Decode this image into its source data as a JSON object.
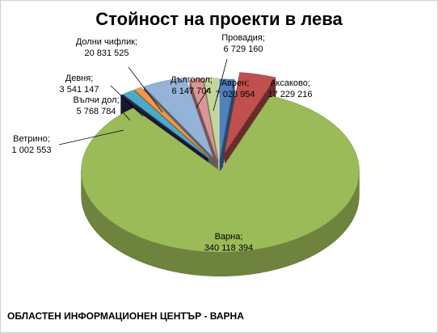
{
  "chart_data": {
    "type": "pie",
    "title": "Стойност на проекти в лева",
    "slices": [
      {
        "name": "Аврен",
        "value_label": "7 028 954",
        "value": 7028954,
        "color": "#4f81bd"
      },
      {
        "name": "Аксаково",
        "value_label": "17 229 216",
        "value": 17229216,
        "color": "#c0504d"
      },
      {
        "name": "Варна",
        "value_label": "340 118 394",
        "value": 340118394,
        "color": "#9bbb59"
      },
      {
        "name": "Ветрино",
        "value_label": "1 002 553",
        "value": 1002553,
        "color": "#2c2a55"
      },
      {
        "name": "Вълчи дол",
        "value_label": "5 768 784",
        "value": 5768784,
        "color": "#4bacc6"
      },
      {
        "name": "Девня",
        "value_label": "3 541 147",
        "value": 3541147,
        "color": "#f79646"
      },
      {
        "name": "Долни чифлик",
        "value_label": "20 831 525",
        "value": 20831525,
        "color": "#95b3d7"
      },
      {
        "name": "Дългопол",
        "value_label": "6 147 704",
        "value": 6147704,
        "color": "#da9694"
      },
      {
        "name": "Провадия",
        "value_label": "6 729 160",
        "value": 6729160,
        "color": "#c4d79b"
      }
    ]
  },
  "footer": "ОБЛАСТЕН ИНФОРМАЦИОНЕН ЦЕНТЪР - ВАРНА"
}
